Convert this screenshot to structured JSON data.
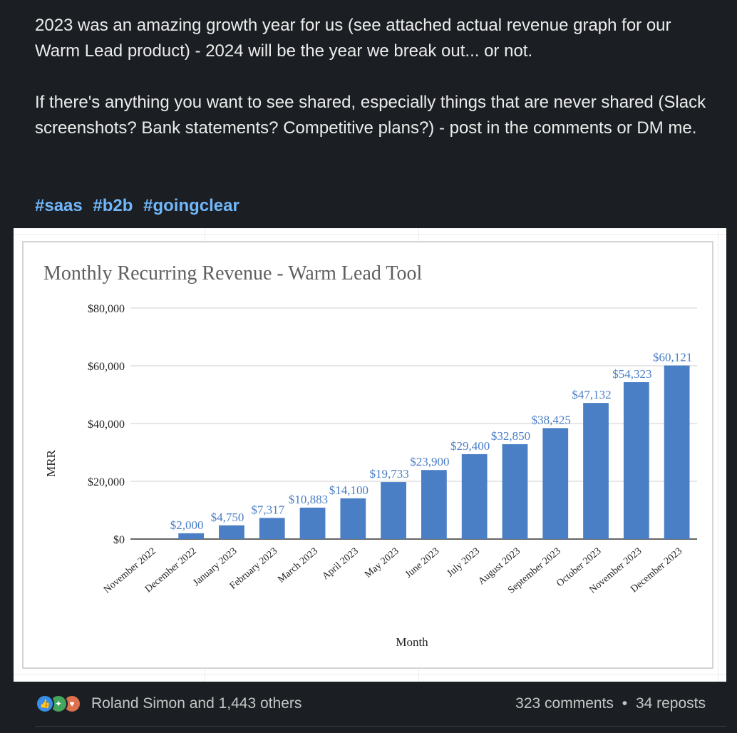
{
  "post": {
    "paragraph1": "2023 was an amazing growth year for us (see attached actual revenue graph for our Warm Lead product) - 2024 will be the year we break out... or not.",
    "paragraph2": "If there's anything you want to see shared, especially things that are never shared (Slack screenshots? Bank statements? Competitive plans?) - post in the comments or DM me.",
    "hashtags": [
      "#saas",
      "#b2b",
      "#goingclear"
    ]
  },
  "footer": {
    "reactions": [
      "like-icon",
      "celebrate-icon",
      "love-icon"
    ],
    "reactors": "Roland Simon and 1,443 others",
    "comments": "323 comments",
    "separator": "•",
    "reposts": "34 reposts"
  },
  "colors": {
    "background": "#1b1f23",
    "hashtag": "#71b7fb",
    "bar": "#4a7ec5",
    "label": "#4a7ec5"
  },
  "chart_data": {
    "type": "bar",
    "title": "Monthly Recurring Revenue - Warm Lead Tool",
    "xlabel": "Month",
    "ylabel": "MRR",
    "ylim": [
      0,
      80000
    ],
    "yticks": [
      "$0",
      "$20,000",
      "$40,000",
      "$60,000",
      "$80,000"
    ],
    "grid": true,
    "categories": [
      "November 2022",
      "December 2022",
      "January 2023",
      "February 2023",
      "March 2023",
      "April 2023",
      "May 2023",
      "June 2023",
      "July 2023",
      "August 2023",
      "September 2023",
      "October 2023",
      "November 2023",
      "December 2023"
    ],
    "values": [
      0,
      2000,
      4750,
      7317,
      10883,
      14100,
      19733,
      23900,
      29400,
      32850,
      38425,
      47132,
      54323,
      60121
    ],
    "labels": [
      "",
      "$2,000",
      "$4,750",
      "$7,317",
      "$10,883",
      "$14,100",
      "$19,733",
      "$23,900",
      "$29,400",
      "$32,850",
      "$38,425",
      "$47,132",
      "$54,323",
      "$60,121"
    ]
  }
}
